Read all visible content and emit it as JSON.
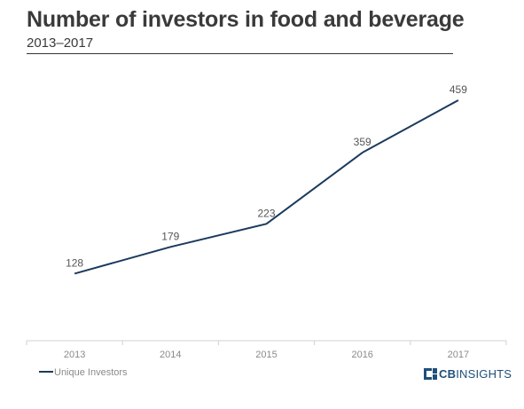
{
  "chart_data": {
    "type": "line",
    "title": "Number of investors in food and beverage",
    "subtitle": "2013–2017",
    "categories": [
      "2013",
      "2014",
      "2015",
      "2016",
      "2017"
    ],
    "series": [
      {
        "name": "Unique Investors",
        "values": [
          128,
          179,
          223,
          359,
          459
        ],
        "color": "#1b3a5c"
      }
    ],
    "data_labels": [
      "128",
      "179",
      "223",
      "359",
      "459"
    ],
    "xlabel": "",
    "ylabel": "",
    "ylim": [
      0,
      500
    ],
    "grid": false,
    "y_axis_visible": false,
    "legend_position": "bottom-left"
  },
  "branding": {
    "logo_text_bold": "CB",
    "logo_text_rest": "INSIGHTS",
    "logo_color": "#1f4f7a"
  }
}
